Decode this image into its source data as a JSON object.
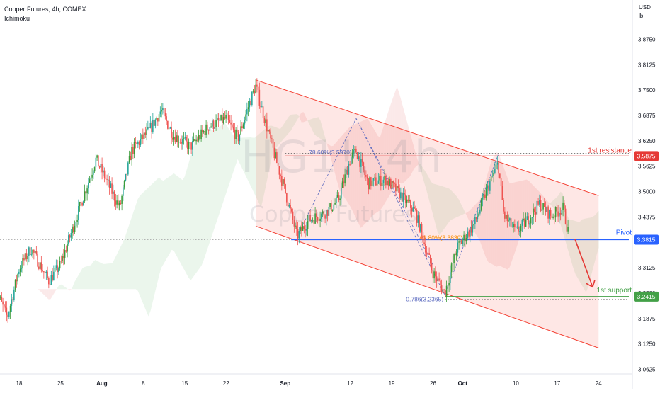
{
  "header": {
    "title": "Copper Futures, 4h, COMEX",
    "indicator": "Ichimoku"
  },
  "watermark": {
    "symbol": "HG1!, 4h",
    "name": "Copper Futures"
  },
  "price_axis": {
    "unit_line1": "USD",
    "unit_line2": "lb"
  },
  "colors": {
    "up": "#26a69a",
    "up_alt": "#3a9b3a",
    "down": "#ef5350",
    "channel": "#f44336",
    "resistance": "#e53935",
    "pivot": "#2962ff",
    "support": "#43a047",
    "cloud_bull": "#a5d6a7",
    "cloud_bear": "#ef9a9a"
  },
  "chart_data": {
    "type": "candlestick",
    "y_range": [
      3.04,
      3.96
    ],
    "y_ticks": [
      "3.8750",
      "3.8125",
      "3.7500",
      "3.6875",
      "3.6250",
      "3.5625",
      "3.5000",
      "3.4375",
      "3.3750",
      "3.3125",
      "3.2500",
      "3.1875",
      "3.1250",
      "3.0625"
    ],
    "x_ticks": [
      {
        "label": "18",
        "bold": false
      },
      {
        "label": "25",
        "bold": false
      },
      {
        "label": "Aug",
        "bold": true
      },
      {
        "label": "8",
        "bold": false
      },
      {
        "label": "15",
        "bold": false
      },
      {
        "label": "22",
        "bold": false
      },
      {
        "label": "Sep",
        "bold": true
      },
      {
        "label": "12",
        "bold": false
      },
      {
        "label": "19",
        "bold": false
      },
      {
        "label": "26",
        "bold": false
      },
      {
        "label": "Oct",
        "bold": true
      },
      {
        "label": "10",
        "bold": false
      },
      {
        "label": "17",
        "bold": false
      },
      {
        "label": "24",
        "bold": false
      }
    ],
    "price_path": [
      [
        "Jul 14",
        3.26
      ],
      [
        "Jul 16",
        3.19
      ],
      [
        "Jul 18",
        3.31
      ],
      [
        "Jul 20",
        3.36
      ],
      [
        "Jul 23",
        3.28
      ],
      [
        "Jul 25",
        3.32
      ],
      [
        "Jul 28",
        3.45
      ],
      [
        "Jul 31",
        3.58
      ],
      [
        "Aug 02",
        3.52
      ],
      [
        "Aug 04",
        3.46
      ],
      [
        "Aug 06",
        3.6
      ],
      [
        "Aug 09",
        3.65
      ],
      [
        "Aug 11",
        3.7
      ],
      [
        "Aug 13",
        3.64
      ],
      [
        "Aug 16",
        3.61
      ],
      [
        "Aug 19",
        3.66
      ],
      [
        "Aug 22",
        3.68
      ],
      [
        "Aug 24",
        3.63
      ],
      [
        "Aug 26",
        3.72
      ],
      [
        "Aug 27",
        3.76
      ],
      [
        "Aug 30",
        3.6
      ],
      [
        "Sep 01",
        3.5
      ],
      [
        "Sep 03",
        3.39
      ],
      [
        "Sep 05",
        3.43
      ],
      [
        "Sep 08",
        3.45
      ],
      [
        "Sep 10",
        3.48
      ],
      [
        "Sep 12",
        3.58
      ],
      [
        "Sep 13",
        3.6
      ],
      [
        "Sep 15",
        3.52
      ],
      [
        "Sep 18",
        3.53
      ],
      [
        "Sep 20",
        3.5
      ],
      [
        "Sep 23",
        3.45
      ],
      [
        "Sep 26",
        3.3
      ],
      [
        "Sep 28",
        3.25
      ],
      [
        "Sep 30",
        3.36
      ],
      [
        "Oct 03",
        3.42
      ],
      [
        "Oct 05",
        3.5
      ],
      [
        "Oct 07",
        3.57
      ],
      [
        "Oct 08",
        3.44
      ],
      [
        "Oct 10",
        3.4
      ],
      [
        "Oct 12",
        3.43
      ],
      [
        "Oct 14",
        3.47
      ],
      [
        "Oct 16",
        3.44
      ],
      [
        "Oct 18",
        3.46
      ],
      [
        "Oct 19",
        3.39
      ]
    ],
    "channel": {
      "upper": [
        [
          "Aug 27",
          3.775
        ],
        [
          "Oct 24",
          3.49
        ]
      ],
      "lower": [
        [
          "Aug 27",
          3.415
        ],
        [
          "Oct 24",
          3.115
        ]
      ]
    },
    "levels": [
      {
        "name": "1st resistance",
        "price": 3.5875,
        "label": "3.5875",
        "color": "resistance"
      },
      {
        "name": "Pivot",
        "price": 3.3815,
        "label": "3.3815",
        "color": "pivot"
      },
      {
        "name": "1st support",
        "price": 3.2415,
        "label": "3.2415",
        "color": "support"
      }
    ],
    "fib_labels": [
      {
        "text": "78.60%(3.5970)"
      },
      {
        "text": "61.80%(3.3830)"
      },
      {
        "text": "0.786(3.2365)"
      }
    ],
    "last_price": {
      "label": "3.3815"
    }
  }
}
